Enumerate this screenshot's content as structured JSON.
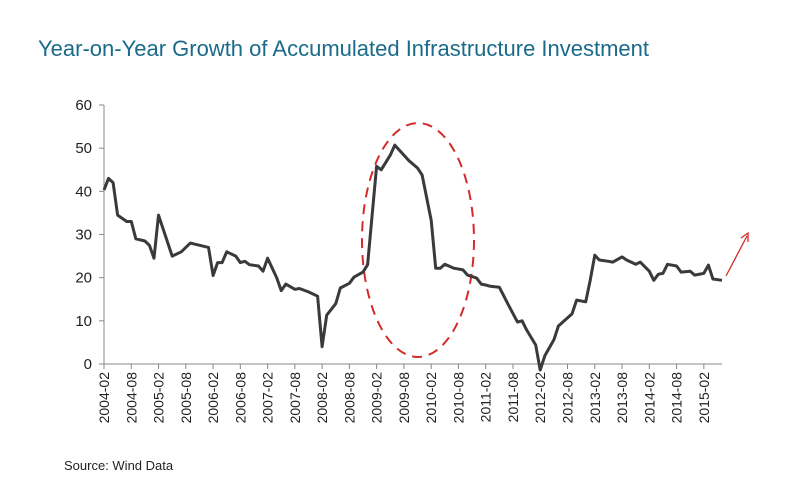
{
  "chart_data": {
    "type": "line",
    "title": "Year-on-Year Growth of  Accumulated Infrastructure Investment",
    "source": "Source: Wind Data",
    "x": [
      "2004-02",
      "2004-03",
      "2004-04",
      "2004-05",
      "2004-07",
      "2004-08",
      "2004-09",
      "2004-11",
      "2004-12",
      "2005-01",
      "2005-02",
      "2005-05",
      "2005-07",
      "2005-09",
      "2006-01",
      "2006-02",
      "2006-03",
      "2006-04",
      "2006-05",
      "2006-07",
      "2006-08",
      "2006-09",
      "2006-10",
      "2006-12",
      "2007-01",
      "2007-02",
      "2007-04",
      "2007-05",
      "2007-06",
      "2007-08",
      "2007-09",
      "2007-11",
      "2008-01",
      "2008-02",
      "2008-03",
      "2008-05",
      "2008-06",
      "2008-08",
      "2008-09",
      "2008-11",
      "2008-12",
      "2009-02",
      "2009-03",
      "2009-05",
      "2009-06",
      "2009-08",
      "2009-09",
      "2009-11",
      "2009-12",
      "2010-02",
      "2010-03",
      "2010-04",
      "2010-05",
      "2010-07",
      "2010-09",
      "2010-10",
      "2010-12",
      "2011-01",
      "2011-02",
      "2011-03",
      "2011-05",
      "2011-07",
      "2011-09",
      "2011-10",
      "2011-11",
      "2012-01",
      "2012-02",
      "2012-03",
      "2012-05",
      "2012-06",
      "2012-09",
      "2012-10",
      "2012-12",
      "2013-01",
      "2013-02",
      "2013-03",
      "2013-05",
      "2013-06",
      "2013-08",
      "2013-09",
      "2013-11",
      "2013-12",
      "2014-02",
      "2014-03",
      "2014-04",
      "2014-05",
      "2014-06",
      "2014-08",
      "2014-09",
      "2014-11",
      "2014-12",
      "2015-02",
      "2015-03",
      "2015-04",
      "2015-06"
    ],
    "series": [
      {
        "color": "#3a3a3a",
        "values": [
          40.3,
          43,
          42,
          34.5,
          33,
          33,
          29,
          28.5,
          27.5,
          24.5,
          34.5,
          25,
          26,
          28,
          27,
          20.5,
          23.5,
          23.5,
          26,
          25,
          23.5,
          23.8,
          23,
          22.7,
          21.5,
          24.5,
          20,
          17,
          18.5,
          17.3,
          17.5,
          16.7,
          15.7,
          4,
          11.3,
          14,
          17.6,
          18.7,
          20.1,
          21.3,
          23,
          45.8,
          45,
          48.4,
          50.7,
          48.4,
          47.2,
          45.4,
          43.8,
          33.3,
          22.2,
          22.2,
          23.1,
          22.2,
          21.8,
          20.6,
          19.9,
          18.5,
          18.3,
          18,
          17.8,
          13.7,
          9.7,
          10,
          7.9,
          4.4,
          -1.4,
          1.9,
          5.6,
          8.8,
          11.6,
          14.8,
          14.4,
          19.4,
          25.2,
          24.1,
          23.8,
          23.6,
          24.8,
          24.1,
          23.1,
          23.6,
          21.5,
          19.4,
          20.8,
          21,
          23.1,
          22.7,
          21.3,
          21.5,
          20.6,
          21,
          22.9,
          19.7,
          19.4
        ]
      }
    ],
    "xlim": [
      "2004-02",
      "2015-06"
    ],
    "xticks": [
      "2004-02",
      "2004-08",
      "2005-02",
      "2005-08",
      "2006-02",
      "2006-08",
      "2007-02",
      "2007-08",
      "2008-02",
      "2008-08",
      "2009-02",
      "2009-08",
      "2010-02",
      "2010-08",
      "2011-02",
      "2011-08",
      "2012-02",
      "2012-08",
      "2013-02",
      "2013-08",
      "2014-02",
      "2014-08",
      "2015-02"
    ],
    "ylim": [
      0,
      60
    ],
    "yticks": [
      0,
      10,
      20,
      30,
      40,
      50,
      60
    ]
  }
}
